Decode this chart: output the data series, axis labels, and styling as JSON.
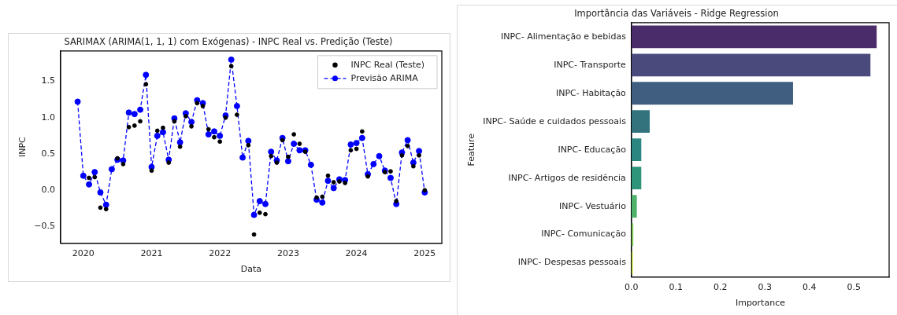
{
  "chart_data": [
    {
      "type": "line",
      "title": "SARIMAX (ARIMA(1, 1, 1) com Exógenas) - INPC Real vs. Predição (Teste)",
      "xlabel": "Data",
      "ylabel": "INPC",
      "legend": "top right",
      "marker": "circle",
      "grid": false,
      "x": [
        "2019-12",
        "2020-01",
        "2020-02",
        "2020-03",
        "2020-04",
        "2020-05",
        "2020-06",
        "2020-07",
        "2020-08",
        "2020-09",
        "2020-10",
        "2020-11",
        "2020-12",
        "2021-01",
        "2021-02",
        "2021-03",
        "2021-04",
        "2021-05",
        "2021-06",
        "2021-07",
        "2021-08",
        "2021-09",
        "2021-10",
        "2021-11",
        "2021-12",
        "2022-01",
        "2022-02",
        "2022-03",
        "2022-04",
        "2022-05",
        "2022-06",
        "2022-07",
        "2022-08",
        "2022-09",
        "2022-10",
        "2022-11",
        "2022-12",
        "2023-01",
        "2023-02",
        "2023-03",
        "2023-04",
        "2023-05",
        "2023-06",
        "2023-07",
        "2023-08",
        "2023-09",
        "2023-10",
        "2023-11",
        "2023-12",
        "2024-01",
        "2024-02",
        "2024-03",
        "2024-04",
        "2024-05",
        "2024-06",
        "2024-07",
        "2024-08",
        "2024-09",
        "2024-10",
        "2024-11",
        "2024-12",
        "2025-01"
      ],
      "xlim": [
        "2019-09",
        "2025-04"
      ],
      "xticks": [
        "2020",
        "2021",
        "2022",
        "2023",
        "2024",
        "2025"
      ],
      "ylim": [
        -0.73,
        1.92
      ],
      "yticks": [
        {
          "value": -0.5,
          "label": "−0.5"
        },
        {
          "value": 0,
          "label": "0.0"
        },
        {
          "value": 0.5,
          "label": "0.5"
        },
        {
          "value": 1,
          "label": "1.0"
        },
        {
          "value": 1.5,
          "label": "1.5"
        }
      ],
      "series": [
        {
          "name": "INPC Real (Teste)",
          "type": "scatter",
          "color": "#000000",
          "values": [
            null,
            null,
            0.17,
            0.18,
            -0.24,
            -0.26,
            null,
            0.44,
            0.36,
            0.87,
            0.89,
            0.95,
            1.46,
            0.27,
            0.82,
            0.86,
            0.38,
            0.95,
            0.6,
            1.02,
            0.88,
            1.2,
            1.16,
            0.84,
            0.73,
            0.67,
            1.0,
            1.71,
            1.04,
            null,
            0.62,
            -0.61,
            -0.31,
            -0.33,
            0.47,
            0.38,
            0.69,
            0.46,
            0.77,
            0.64,
            0.53,
            null,
            -0.1,
            -0.09,
            0.2,
            0.11,
            0.12,
            0.1,
            0.55,
            0.57,
            0.81,
            0.19,
            null,
            null,
            0.25,
            0.26,
            -0.15,
            0.48,
            0.61,
            0.33,
            0.48,
            0.0
          ]
        },
        {
          "name": "Previsão ARIMA",
          "type": "line",
          "line_style": "dashed",
          "color": "#0000ff",
          "values": [
            1.22,
            0.2,
            0.08,
            0.25,
            -0.03,
            -0.2,
            0.29,
            0.42,
            0.41,
            1.07,
            1.05,
            1.11,
            1.59,
            0.32,
            0.75,
            0.8,
            0.42,
            0.99,
            0.66,
            1.06,
            0.94,
            1.24,
            1.2,
            0.77,
            0.81,
            0.75,
            1.03,
            1.8,
            1.16,
            0.45,
            0.68,
            -0.34,
            -0.15,
            -0.19,
            0.53,
            0.41,
            0.72,
            0.4,
            0.64,
            0.55,
            0.55,
            0.35,
            -0.13,
            -0.17,
            0.13,
            0.03,
            0.15,
            0.14,
            0.63,
            0.65,
            0.72,
            0.22,
            0.36,
            0.47,
            0.27,
            0.17,
            -0.19,
            0.52,
            0.69,
            0.38,
            0.54,
            -0.03
          ]
        }
      ]
    },
    {
      "type": "bar",
      "orientation": "horizontal",
      "title": "Importância das Variáveis - Ridge Regression",
      "xlabel": "Importance",
      "ylabel": "Feature",
      "legend": false,
      "grid": false,
      "categories": [
        "INPC- Alimentação e bebidas",
        "INPC- Transporte",
        "INPC- Habitação",
        "INPC- Saúde e cuidados pessoais",
        "INPC- Educação",
        "INPC- Artigos de residência",
        "INPC- Vestuário",
        "INPC- Comunicação",
        "INPC- Despesas pessoais"
      ],
      "values": [
        0.551,
        0.537,
        0.363,
        0.041,
        0.022,
        0.022,
        0.012,
        0.004,
        0.003
      ],
      "colors": [
        "#4a2c6a",
        "#4a4a7c",
        "#3f5e80",
        "#33737e",
        "#2b8580",
        "#2f957a",
        "#4fb36c",
        "#80c653",
        "#b8d43a"
      ],
      "xlim": [
        0,
        0.579
      ],
      "xticks": [
        {
          "value": 0,
          "label": "0.0"
        },
        {
          "value": 0.1,
          "label": "0.1"
        },
        {
          "value": 0.2,
          "label": "0.2"
        },
        {
          "value": 0.3,
          "label": "0.3"
        },
        {
          "value": 0.4,
          "label": "0.4"
        },
        {
          "value": 0.5,
          "label": "0.5"
        }
      ]
    }
  ]
}
